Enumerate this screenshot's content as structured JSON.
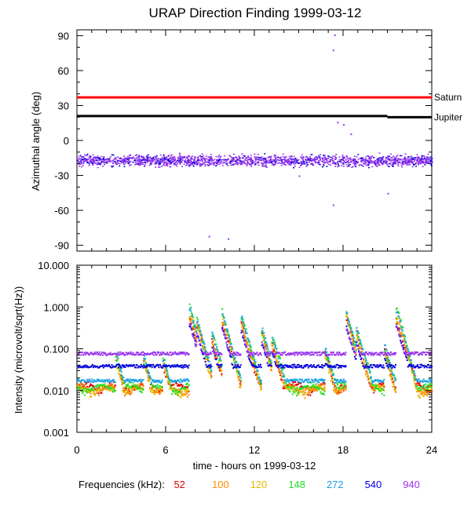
{
  "title": "URAP Direction Finding  1999-03-12",
  "xlabel": "time - hours on 1999-03-12",
  "legend": {
    "label": "Frequencies (kHz):",
    "items": [
      {
        "name": "52",
        "color": "#dd0000"
      },
      {
        "name": "100",
        "color": "#ff8c00"
      },
      {
        "name": "120",
        "color": "#e6b800"
      },
      {
        "name": "148",
        "color": "#22dd22"
      },
      {
        "name": "272",
        "color": "#1aa0e6"
      },
      {
        "name": "540",
        "color": "#0000dd"
      },
      {
        "name": "940",
        "color": "#9933ee"
      }
    ]
  },
  "chart_data": [
    {
      "type": "scatter",
      "title": "URAP Direction Finding  1999-03-12",
      "ylabel": "Azimuthal angle (deg)",
      "xlabel": "time - hours on 1999-03-12",
      "xlim": [
        0,
        24
      ],
      "ylim": [
        -95,
        95
      ],
      "xticks": [
        "0",
        "6",
        "12",
        "18",
        "24"
      ],
      "yticks": [
        "90",
        "60",
        "30",
        "0",
        "-30",
        "-60",
        "-90"
      ],
      "reference_lines": [
        {
          "name": "Saturn",
          "y": 37,
          "color": "#ff0000"
        },
        {
          "name": "Jupiter",
          "y": 21,
          "color": "#000000",
          "y_end": 20
        }
      ],
      "scatter_band": {
        "center": -17,
        "halfwidth": 7,
        "x_range": [
          0,
          24
        ],
        "color": "#9933ee"
      },
      "outliers": [
        {
          "x": 17.4,
          "y": 91
        },
        {
          "x": 17.3,
          "y": 78
        },
        {
          "x": 18.0,
          "y": 14
        },
        {
          "x": 17.6,
          "y": 16
        },
        {
          "x": 18.5,
          "y": 6
        },
        {
          "x": 8.9,
          "y": -82
        },
        {
          "x": 10.2,
          "y": -84
        },
        {
          "x": 17.3,
          "y": -55
        },
        {
          "x": 21.0,
          "y": -45
        },
        {
          "x": 15.0,
          "y": -30
        }
      ]
    },
    {
      "type": "scatter",
      "ylabel": "Intensity (microvolt/sqrt(Hz))",
      "xlabel": "time - hours on 1999-03-12",
      "xlim": [
        0,
        24
      ],
      "ylim": [
        0.001,
        10
      ],
      "yscale": "log",
      "xticks": [
        "0",
        "6",
        "12",
        "18",
        "24"
      ],
      "yticks": [
        "10.000",
        "1.000",
        "0.100",
        "0.010",
        "0.001"
      ],
      "series": [
        {
          "name": "940",
          "baseline": 0.08,
          "color": "#9933ee"
        },
        {
          "name": "540",
          "baseline": 0.04,
          "color": "#0000dd"
        },
        {
          "name": "272",
          "baseline": 0.018,
          "color": "#1aa0e6"
        },
        {
          "name": "148",
          "baseline": 0.012,
          "color": "#22dd22"
        },
        {
          "name": "120",
          "baseline": 0.011,
          "color": "#e6b800"
        },
        {
          "name": "100",
          "baseline": 0.011,
          "color": "#ff8c00"
        },
        {
          "name": "52",
          "baseline": 0.013,
          "color": "#dd0000"
        }
      ],
      "bursts": [
        {
          "x": 2.6,
          "peak": 0.08
        },
        {
          "x": 4.5,
          "peak": 0.07
        },
        {
          "x": 5.8,
          "peak": 0.06
        },
        {
          "x": 7.6,
          "peak": 0.9
        },
        {
          "x": 8.1,
          "peak": 0.5
        },
        {
          "x": 9.1,
          "peak": 0.25
        },
        {
          "x": 9.8,
          "peak": 0.7
        },
        {
          "x": 11.1,
          "peak": 0.6
        },
        {
          "x": 12.5,
          "peak": 0.3
        },
        {
          "x": 13.2,
          "peak": 0.18
        },
        {
          "x": 16.8,
          "peak": 0.1
        },
        {
          "x": 18.2,
          "peak": 0.75
        },
        {
          "x": 18.9,
          "peak": 0.3
        },
        {
          "x": 20.8,
          "peak": 0.12
        },
        {
          "x": 21.6,
          "peak": 0.8
        }
      ]
    }
  ]
}
